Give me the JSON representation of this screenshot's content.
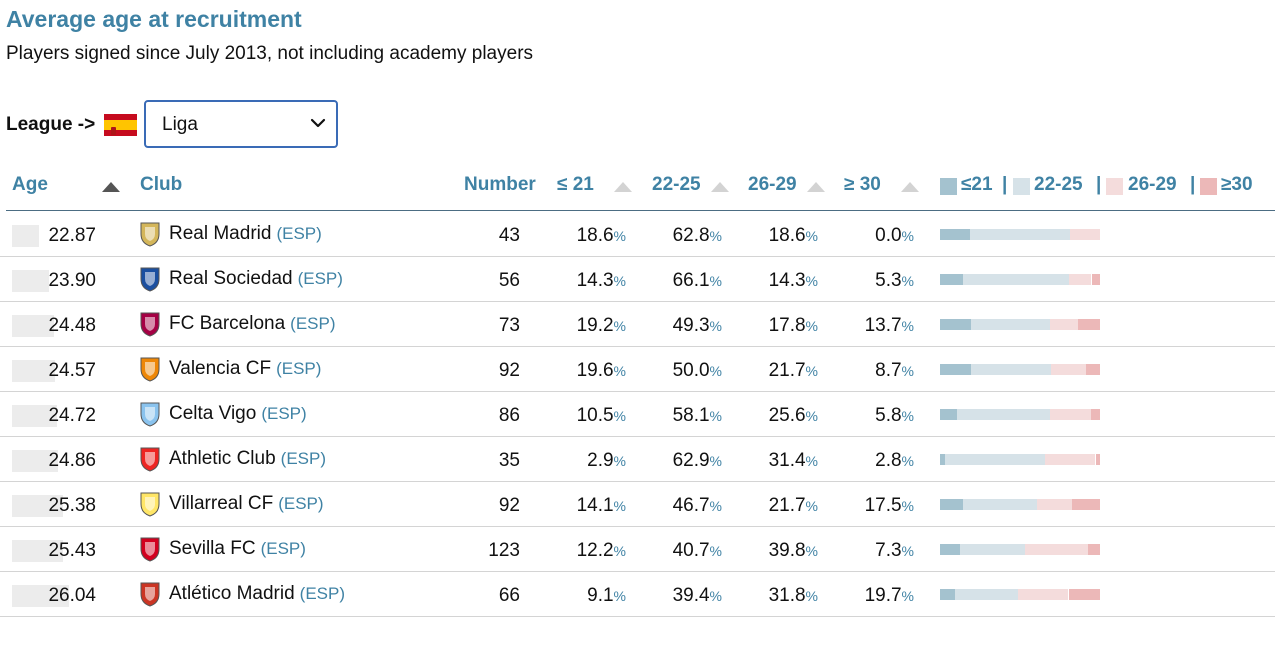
{
  "title": "Average age at recruitment",
  "subtitle": "Players signed since July 2013, not including academy players",
  "filter": {
    "label": "League ->",
    "flag_icon": "spain-flag-icon",
    "selected": "Liga"
  },
  "columns": {
    "age": "Age",
    "club": "Club",
    "number": "Number",
    "u21": "≤ 21",
    "a22_25": "22-25",
    "a26_29": "26-29",
    "o30": "≥ 30"
  },
  "legend": {
    "u21": "≤21",
    "a22_25": "22-25",
    "a26_29": "26-29",
    "o30": "≥30",
    "sep": "|"
  },
  "colors": {
    "u21": "#a4c2cf",
    "a22_25": "#d6e2e8",
    "a26_29": "#f4dcdc",
    "o30": "#ecb8b8",
    "accent": "#3f82a4"
  },
  "pct_symbol": "%",
  "age_scale": [
    20,
    27
  ],
  "rows": [
    {
      "age": "22.87",
      "club": "Real Madrid",
      "country": "(ESP)",
      "number": "43",
      "u21": "18.6",
      "a22_25": "62.8",
      "a26_29": "18.6",
      "o30": "0.0",
      "crest_color": "#d4b65a"
    },
    {
      "age": "23.90",
      "club": "Real Sociedad",
      "country": "(ESP)",
      "number": "56",
      "u21": "14.3",
      "a22_25": "66.1",
      "a26_29": "14.3",
      "o30": "5.3",
      "crest_color": "#1b4fa0"
    },
    {
      "age": "24.48",
      "club": "FC Barcelona",
      "country": "(ESP)",
      "number": "73",
      "u21": "19.2",
      "a22_25": "49.3",
      "a26_29": "17.8",
      "o30": "13.7",
      "crest_color": "#a50044"
    },
    {
      "age": "24.57",
      "club": "Valencia CF",
      "country": "(ESP)",
      "number": "92",
      "u21": "19.6",
      "a22_25": "50.0",
      "a26_29": "21.7",
      "o30": "8.7",
      "crest_color": "#ee8707"
    },
    {
      "age": "24.72",
      "club": "Celta Vigo",
      "country": "(ESP)",
      "number": "86",
      "u21": "10.5",
      "a22_25": "58.1",
      "a26_29": "25.6",
      "o30": "5.8",
      "crest_color": "#8ac3ee"
    },
    {
      "age": "24.86",
      "club": "Athletic Club",
      "country": "(ESP)",
      "number": "35",
      "u21": "2.9",
      "a22_25": "62.9",
      "a26_29": "31.4",
      "o30": "2.8",
      "crest_color": "#ee2523"
    },
    {
      "age": "25.38",
      "club": "Villarreal CF",
      "country": "(ESP)",
      "number": "92",
      "u21": "14.1",
      "a22_25": "46.7",
      "a26_29": "21.7",
      "o30": "17.5",
      "crest_color": "#ffe667"
    },
    {
      "age": "25.43",
      "club": "Sevilla FC",
      "country": "(ESP)",
      "number": "123",
      "u21": "12.2",
      "a22_25": "40.7",
      "a26_29": "39.8",
      "o30": "7.3",
      "crest_color": "#d2001f"
    },
    {
      "age": "26.04",
      "club": "Atlético Madrid",
      "country": "(ESP)",
      "number": "66",
      "u21": "9.1",
      "a22_25": "39.4",
      "a26_29": "31.8",
      "o30": "19.7",
      "crest_color": "#cb3524"
    }
  ]
}
